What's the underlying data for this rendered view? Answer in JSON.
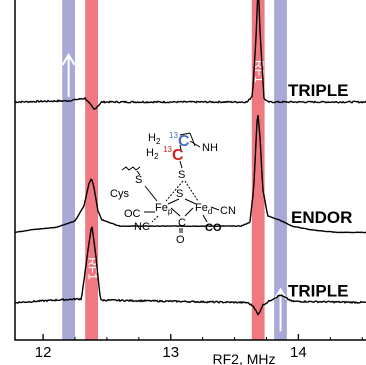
{
  "chart_data": {
    "type": "line",
    "title": "",
    "xlabel": "RF2, MHz",
    "ylabel": "",
    "xlim": [
      11.78,
      14.6
    ],
    "grid": false,
    "x_ticks": [
      {
        "value": 12,
        "label": "12"
      },
      {
        "value": 13,
        "label": "13"
      },
      {
        "value": 14,
        "label": "14"
      }
    ],
    "bands": [
      {
        "center": 12.2,
        "width": 0.1,
        "color": "#a9a9d8",
        "label": "",
        "arrow": "up",
        "arrow_offset": 0.22
      },
      {
        "center": 12.38,
        "width": 0.1,
        "color": "#f07880",
        "label": "RF1",
        "label_offset": 0.79
      },
      {
        "center": 13.685,
        "width": 0.1,
        "color": "#f07880",
        "label": "RF1",
        "label_offset": 0.21
      },
      {
        "center": 13.86,
        "width": 0.1,
        "color": "#a9a9d8",
        "label": "",
        "arrow": "up",
        "arrow_offset": 0.91
      }
    ],
    "series": [
      {
        "name": "TRIPLE",
        "baseline_offset": 0.3,
        "points": [
          [
            11.78,
            0.0
          ],
          [
            12.2,
            0.01
          ],
          [
            12.33,
            0.03
          ],
          [
            12.4,
            -0.06
          ],
          [
            12.46,
            0.0
          ],
          [
            13.6,
            0.0
          ],
          [
            13.64,
            0.05
          ],
          [
            13.67,
            0.55
          ],
          [
            13.685,
            0.95
          ],
          [
            13.7,
            0.55
          ],
          [
            13.73,
            0.03
          ],
          [
            13.76,
            0.0
          ],
          [
            14.6,
            0.0
          ]
        ]
      },
      {
        "name": "ENDOR",
        "baseline_offset": 0.665,
        "points": [
          [
            11.78,
            -0.05
          ],
          [
            11.9,
            -0.03
          ],
          [
            12.1,
            -0.01
          ],
          [
            12.25,
            0.04
          ],
          [
            12.32,
            0.16
          ],
          [
            12.36,
            0.34
          ],
          [
            12.38,
            0.38
          ],
          [
            12.4,
            0.3
          ],
          [
            12.43,
            0.12
          ],
          [
            12.46,
            0.05
          ],
          [
            12.6,
            0.0
          ],
          [
            13.55,
            0.0
          ],
          [
            13.62,
            0.03
          ],
          [
            13.65,
            0.3
          ],
          [
            13.68,
            0.92
          ],
          [
            13.7,
            0.7
          ],
          [
            13.72,
            0.3
          ],
          [
            13.76,
            0.08
          ],
          [
            13.85,
            0.05
          ],
          [
            13.95,
            0.0
          ],
          [
            14.1,
            -0.03
          ],
          [
            14.3,
            -0.05
          ],
          [
            14.6,
            -0.05
          ]
        ]
      },
      {
        "name": "TRIPLE",
        "baseline_offset": 0.89,
        "points": [
          [
            11.78,
            0.0
          ],
          [
            12.1,
            0.02
          ],
          [
            12.3,
            0.03
          ],
          [
            12.35,
            0.4
          ],
          [
            12.38,
            0.62
          ],
          [
            12.41,
            0.4
          ],
          [
            12.45,
            0.02
          ],
          [
            13.6,
            0.0
          ],
          [
            13.65,
            -0.03
          ],
          [
            13.685,
            -0.1
          ],
          [
            13.72,
            -0.02
          ],
          [
            13.8,
            0.03
          ],
          [
            13.86,
            0.06
          ],
          [
            13.95,
            0.01
          ],
          [
            14.6,
            0.0
          ]
        ]
      }
    ],
    "inset": {
      "description_labels": {
        "h2_13c": "H",
        "h2_13c_sub": "2",
        "c13_sup": "13",
        "c13": "C",
        "nh": "NH",
        "s_top": "S",
        "s_left": "S",
        "s_mid": "S",
        "cys": "Cys",
        "fep": "Fe",
        "fep_sub": "p",
        "fed": "Fe",
        "fed_sub": "d",
        "oc": "OC",
        "nc": "NC",
        "c": "C",
        "o": "O",
        "co": "CO",
        "cn": "CN"
      }
    }
  }
}
